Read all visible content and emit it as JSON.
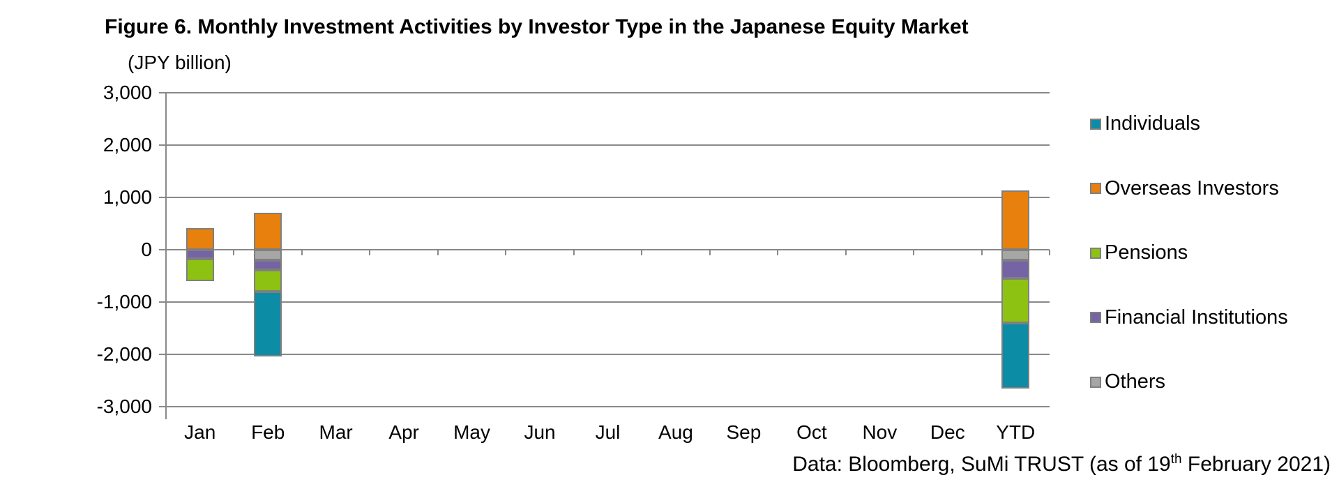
{
  "title": "Figure 6. Monthly Investment Activities by Investor Type in the Japanese Equity Market",
  "unit_label": "(JPY billion)",
  "source": {
    "prefix": "Data: Bloomberg, SuMi TRUST (as of 19",
    "superscript": "th",
    "suffix": " February 2021)"
  },
  "chart_data": {
    "type": "bar",
    "stacked": true,
    "title": "Figure 6. Monthly Investment Activities by Investor Type in the Japanese Equity Market",
    "ylabel": "(JPY billion)",
    "categories": [
      "Jan",
      "Feb",
      "Mar",
      "Apr",
      "May",
      "Jun",
      "Jul",
      "Aug",
      "Sep",
      "Oct",
      "Nov",
      "Dec",
      "YTD"
    ],
    "series": [
      {
        "name": "Individuals",
        "color": "#0d8ca6",
        "values": [
          0,
          -1240,
          0,
          0,
          0,
          0,
          0,
          0,
          0,
          0,
          0,
          0,
          -1250
        ]
      },
      {
        "name": "Overseas Investors",
        "color": "#e8800d",
        "values": [
          410,
          710,
          0,
          0,
          0,
          0,
          0,
          0,
          0,
          0,
          0,
          0,
          1130
        ]
      },
      {
        "name": "Pensions",
        "color": "#8dc213",
        "values": [
          -430,
          -420,
          0,
          0,
          0,
          0,
          0,
          0,
          0,
          0,
          0,
          0,
          -850
        ]
      },
      {
        "name": "Financial Institutions",
        "color": "#7564a5",
        "values": [
          -170,
          -180,
          0,
          0,
          0,
          0,
          0,
          0,
          0,
          0,
          0,
          0,
          -350
        ]
      },
      {
        "name": "Others",
        "color": "#a6a6a6",
        "values": [
          0,
          -200,
          0,
          0,
          0,
          0,
          0,
          0,
          0,
          0,
          0,
          0,
          -200
        ]
      }
    ],
    "ylim": [
      -3000,
      3000
    ],
    "ytick_step": 1000,
    "ytick_labels": [
      "3,000",
      "2,000",
      "1,000",
      "0",
      "-1,000",
      "-2,000",
      "-3,000"
    ],
    "grid": true,
    "legend_position": "right"
  }
}
